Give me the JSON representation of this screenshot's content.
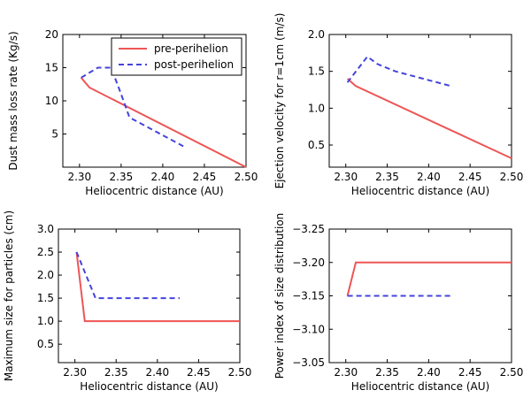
{
  "colors": {
    "pre": "#ee5555",
    "post": "#4444dd",
    "axes": "#000000",
    "background": "#ffffff"
  },
  "chart_data": [
    {
      "type": "line",
      "xlabel": "Heliocentric distance (AU)",
      "ylabel": "Dust mass loss rate (Kg/s)",
      "xlim": [
        2.28,
        2.5
      ],
      "ylim": [
        0,
        20
      ],
      "xticks": [
        2.3,
        2.35,
        2.4,
        2.45,
        2.5
      ],
      "xtick_labels": [
        "2.30",
        "2.35",
        "2.40",
        "2.45",
        "2.50"
      ],
      "yticks": [
        5,
        10,
        15,
        20
      ],
      "ytick_labels": [
        "5",
        "10",
        "15",
        "20"
      ],
      "grid": false,
      "legend": {
        "position": "top-right",
        "entries": [
          "pre-perihelion",
          "post-perihelion"
        ]
      },
      "series": [
        {
          "name": "pre-perihelion",
          "style": "solid",
          "x": [
            2.302,
            2.312,
            2.5
          ],
          "y": [
            13.5,
            12.0,
            0.0
          ]
        },
        {
          "name": "post-perihelion",
          "style": "dashed",
          "x": [
            2.302,
            2.322,
            2.338,
            2.35,
            2.36,
            2.427
          ],
          "y": [
            13.5,
            15.0,
            15.0,
            11.0,
            7.5,
            3.0
          ]
        }
      ]
    },
    {
      "type": "line",
      "xlabel": "Heliocentric distance (AU)",
      "ylabel": "Ejection velocity for r=1cm (m/s)",
      "xlim": [
        2.28,
        2.5
      ],
      "ylim": [
        0.2,
        2.0
      ],
      "xticks": [
        2.3,
        2.35,
        2.4,
        2.45,
        2.5
      ],
      "xtick_labels": [
        "2.30",
        "2.35",
        "2.40",
        "2.45",
        "2.50"
      ],
      "yticks": [
        0.5,
        1.0,
        1.5,
        2.0
      ],
      "ytick_labels": [
        "0.5",
        "1.0",
        "1.5",
        "2.0"
      ],
      "grid": false,
      "series": [
        {
          "name": "pre-perihelion",
          "style": "solid",
          "x": [
            2.302,
            2.312,
            2.5
          ],
          "y": [
            1.4,
            1.3,
            0.32
          ]
        },
        {
          "name": "post-perihelion",
          "style": "dashed",
          "x": [
            2.302,
            2.326,
            2.338,
            2.36,
            2.427
          ],
          "y": [
            1.35,
            1.7,
            1.6,
            1.5,
            1.3
          ]
        }
      ]
    },
    {
      "type": "line",
      "xlabel": "Heliocentric distance (AU)",
      "ylabel": "Maximum size for particles (cm)",
      "xlim": [
        2.28,
        2.5
      ],
      "ylim": [
        0.1,
        3.0
      ],
      "xticks": [
        2.3,
        2.35,
        2.4,
        2.45,
        2.5
      ],
      "xtick_labels": [
        "2.30",
        "2.35",
        "2.40",
        "2.45",
        "2.50"
      ],
      "yticks": [
        0.5,
        1.0,
        1.5,
        2.0,
        2.5,
        3.0
      ],
      "ytick_labels": [
        "0.5",
        "1.0",
        "1.5",
        "2.0",
        "2.5",
        "3.0"
      ],
      "grid": false,
      "series": [
        {
          "name": "pre-perihelion",
          "style": "solid",
          "x": [
            2.302,
            2.312,
            2.5
          ],
          "y": [
            2.5,
            1.0,
            1.0
          ]
        },
        {
          "name": "post-perihelion",
          "style": "dashed",
          "x": [
            2.302,
            2.325,
            2.427
          ],
          "y": [
            2.5,
            1.5,
            1.5
          ]
        }
      ]
    },
    {
      "type": "line",
      "xlabel": "Heliocentric distance (AU)",
      "ylabel": "Power index of size distribution",
      "xlim": [
        2.28,
        2.5
      ],
      "ylim": [
        -3.25,
        -3.05
      ],
      "y_inverted": true,
      "xticks": [
        2.3,
        2.35,
        2.4,
        2.45,
        2.5
      ],
      "xtick_labels": [
        "2.30",
        "2.35",
        "2.40",
        "2.45",
        "2.50"
      ],
      "yticks": [
        -3.25,
        -3.2,
        -3.15,
        -3.1,
        -3.05
      ],
      "ytick_labels": [
        "−3.25",
        "−3.20",
        "−3.15",
        "−3.10",
        "−3.05"
      ],
      "grid": false,
      "series": [
        {
          "name": "pre-perihelion",
          "style": "solid",
          "x": [
            2.302,
            2.312,
            2.5
          ],
          "y": [
            -3.15,
            -3.2,
            -3.2
          ]
        },
        {
          "name": "post-perihelion",
          "style": "dashed",
          "x": [
            2.302,
            2.427
          ],
          "y": [
            -3.15,
            -3.15
          ]
        }
      ]
    }
  ]
}
